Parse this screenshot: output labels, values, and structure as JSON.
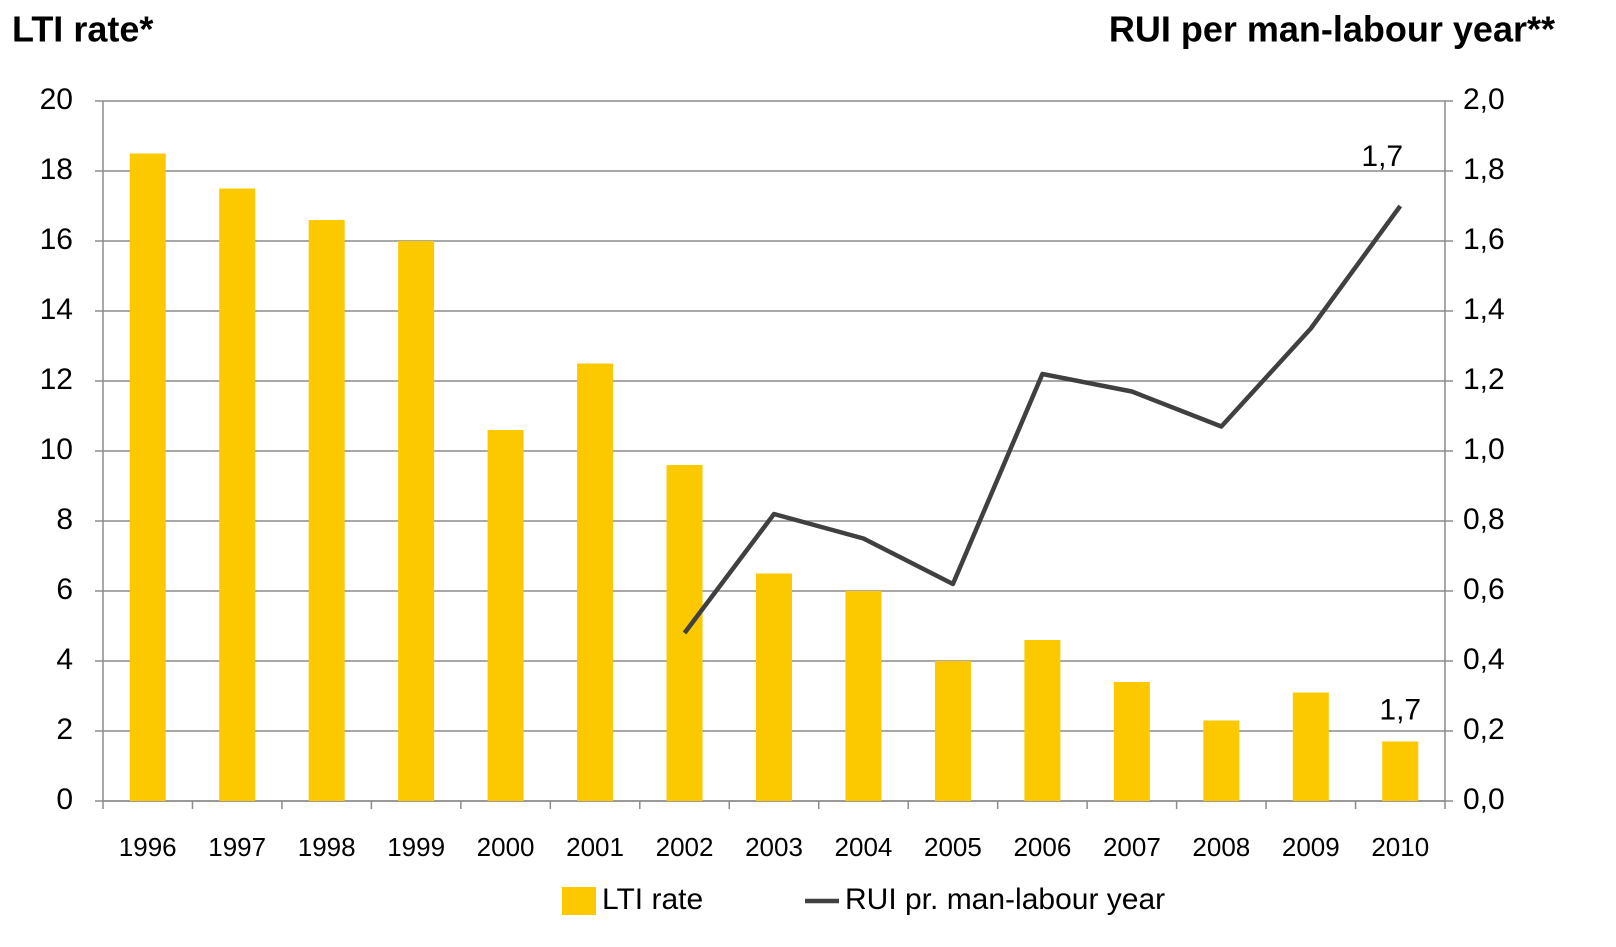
{
  "chart_data": {
    "type": "bar-line",
    "y_title": "LTI rate*",
    "y2_title": "RUI per man-labour year**",
    "categories": [
      "1996",
      "1997",
      "1998",
      "1999",
      "2000",
      "2001",
      "2002",
      "2003",
      "2004",
      "2005",
      "2006",
      "2007",
      "2008",
      "2009",
      "2010"
    ],
    "series": [
      {
        "name": "LTI rate",
        "type": "bar",
        "color": "#fcc800",
        "values": [
          18.5,
          17.5,
          16.6,
          16.0,
          10.6,
          12.5,
          9.6,
          6.5,
          6.0,
          4.0,
          4.6,
          3.4,
          2.3,
          3.1,
          1.7
        ],
        "value_labels": [
          null,
          null,
          null,
          null,
          null,
          null,
          null,
          null,
          null,
          null,
          null,
          null,
          null,
          null,
          "1,7"
        ]
      },
      {
        "name": "RUI pr. man-labour year",
        "type": "line",
        "color": "#404040",
        "axis": "y2",
        "values": [
          null,
          null,
          null,
          null,
          null,
          null,
          0.48,
          0.82,
          0.75,
          0.62,
          1.22,
          1.17,
          1.07,
          1.35,
          1.7
        ],
        "value_labels": [
          null,
          null,
          null,
          null,
          null,
          null,
          null,
          null,
          null,
          null,
          null,
          null,
          null,
          null,
          "1,7"
        ]
      }
    ],
    "ylim": [
      0,
      20
    ],
    "yticks": [
      0,
      2,
      4,
      6,
      8,
      10,
      12,
      14,
      16,
      18,
      20
    ],
    "y2lim": [
      0,
      2
    ],
    "y2ticks": [
      {
        "value": 0,
        "label": "0,0"
      },
      {
        "value": 0.2,
        "label": "0,2"
      },
      {
        "value": 0.4,
        "label": "0,4"
      },
      {
        "value": 0.6,
        "label": "0,6"
      },
      {
        "value": 0.8,
        "label": "0,8"
      },
      {
        "value": 1.0,
        "label": "1,0"
      },
      {
        "value": 1.2,
        "label": "1,2"
      },
      {
        "value": 1.4,
        "label": "1,4"
      },
      {
        "value": 1.6,
        "label": "1,6"
      },
      {
        "value": 1.8,
        "label": "1,8"
      },
      {
        "value": 2.0,
        "label": "2,0"
      }
    ],
    "grid": true,
    "legend": "bottom"
  }
}
